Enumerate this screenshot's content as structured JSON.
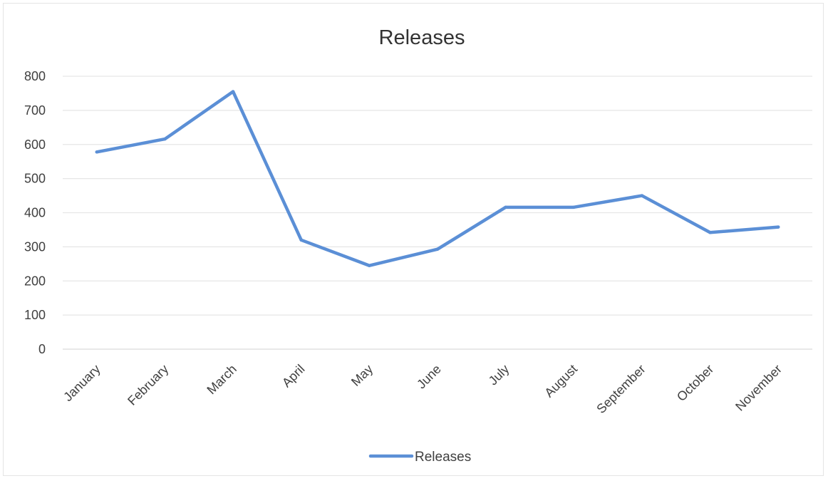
{
  "chart_data": {
    "type": "line",
    "title": "Releases",
    "xlabel": "",
    "ylabel": "",
    "categories": [
      "January",
      "February",
      "March",
      "April",
      "May",
      "June",
      "July",
      "August",
      "September",
      "October",
      "November"
    ],
    "series": [
      {
        "name": "Releases",
        "color": "#5b8fd6",
        "values": [
          578,
          616,
          755,
          320,
          245,
          293,
          416,
          416,
          450,
          342,
          358
        ]
      }
    ],
    "ylim": [
      0,
      800
    ],
    "yticks": [
      0,
      100,
      200,
      300,
      400,
      500,
      600,
      700,
      800
    ],
    "grid": true,
    "legend": "bottom",
    "colors": {
      "gridline": "#e6e6e6",
      "text": "#404040"
    }
  }
}
